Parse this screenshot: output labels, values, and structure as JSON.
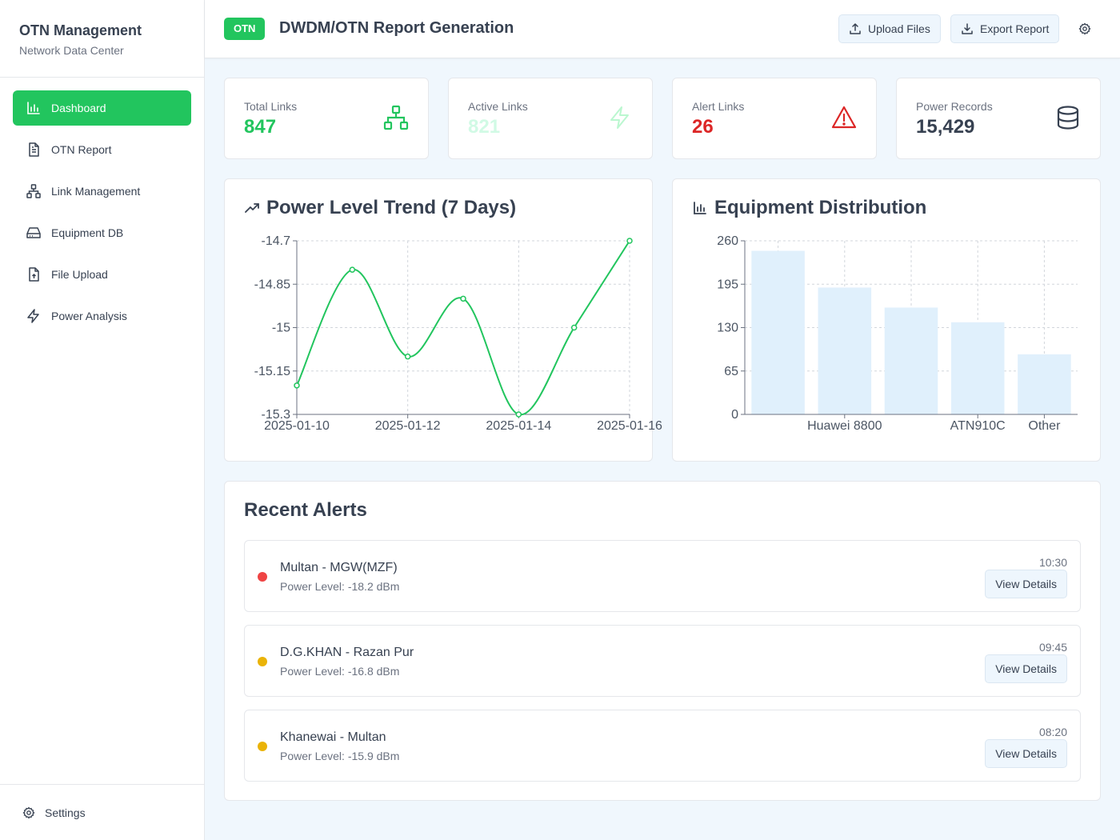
{
  "brand": {
    "title": "OTN Management",
    "subtitle": "Network Data Center"
  },
  "nav": [
    {
      "label": "Dashboard",
      "icon": "bar-chart-icon",
      "active": true
    },
    {
      "label": "OTN Report",
      "icon": "document-icon"
    },
    {
      "label": "Link Management",
      "icon": "network-icon"
    },
    {
      "label": "Equipment DB",
      "icon": "hard-drive-icon"
    },
    {
      "label": "File Upload",
      "icon": "file-upload-icon"
    },
    {
      "label": "Power Analysis",
      "icon": "lightning-icon"
    }
  ],
  "settings_label": "Settings",
  "header": {
    "badge": "OTN",
    "title": "DWDM/OTN Report Generation",
    "upload_label": "Upload Files",
    "export_label": "Export Report"
  },
  "stats": [
    {
      "label": "Total Links",
      "value": "847",
      "color": "#22c55e",
      "icon": "network-icon"
    },
    {
      "label": "Active Links",
      "value": "821",
      "color": "#d1fae5",
      "icon": "lightning-icon"
    },
    {
      "label": "Alert Links",
      "value": "26",
      "color": "#dc2626",
      "icon": "warning-icon"
    },
    {
      "label": "Power Records",
      "value": "15,429",
      "color": "#374151",
      "icon": "database-icon"
    }
  ],
  "power_card": {
    "title": "Power Level Trend (7 Days)"
  },
  "equip_card": {
    "title": "Equipment Distribution"
  },
  "chart_data": [
    {
      "type": "line",
      "title": "Power Level Trend (7 Days)",
      "x": [
        "2025-01-10",
        "2025-01-11",
        "2025-01-12",
        "2025-01-13",
        "2025-01-14",
        "2025-01-15",
        "2025-01-16"
      ],
      "x_tick_labels": [
        "2025-01-10",
        "2025-01-12",
        "2025-01-14",
        "2025-01-16"
      ],
      "values": [
        -15.2,
        -14.8,
        -15.1,
        -14.9,
        -15.3,
        -15.0,
        -14.7
      ],
      "y_ticks": [
        -14.7,
        -14.85,
        -15,
        -15.15,
        -15.3
      ],
      "ylim": [
        -15.3,
        -14.7
      ],
      "grid": true,
      "color": "#22c55e"
    },
    {
      "type": "bar",
      "title": "Equipment Distribution",
      "categories": [
        "",
        "Huawei 8800",
        "",
        "ATN910C",
        "Other"
      ],
      "values": [
        245,
        190,
        160,
        138,
        90
      ],
      "y_ticks": [
        260,
        195,
        130,
        65,
        0
      ],
      "ylim": [
        0,
        260
      ],
      "grid": true,
      "color": "#e0f0fc"
    }
  ],
  "alerts_title": "Recent Alerts",
  "alerts": [
    {
      "name": "Multan - MGW(MZF)",
      "power": "Power Level: -18.2 dBm",
      "time": "10:30",
      "button": "View Details",
      "color": "#ef4444"
    },
    {
      "name": "D.G.KHAN - Razan Pur",
      "power": "Power Level: -16.8 dBm",
      "time": "09:45",
      "button": "View Details",
      "color": "#eab308"
    },
    {
      "name": "Khanewai - Multan",
      "power": "Power Level: -15.9 dBm",
      "time": "08:20",
      "button": "View Details",
      "color": "#eab308"
    }
  ]
}
